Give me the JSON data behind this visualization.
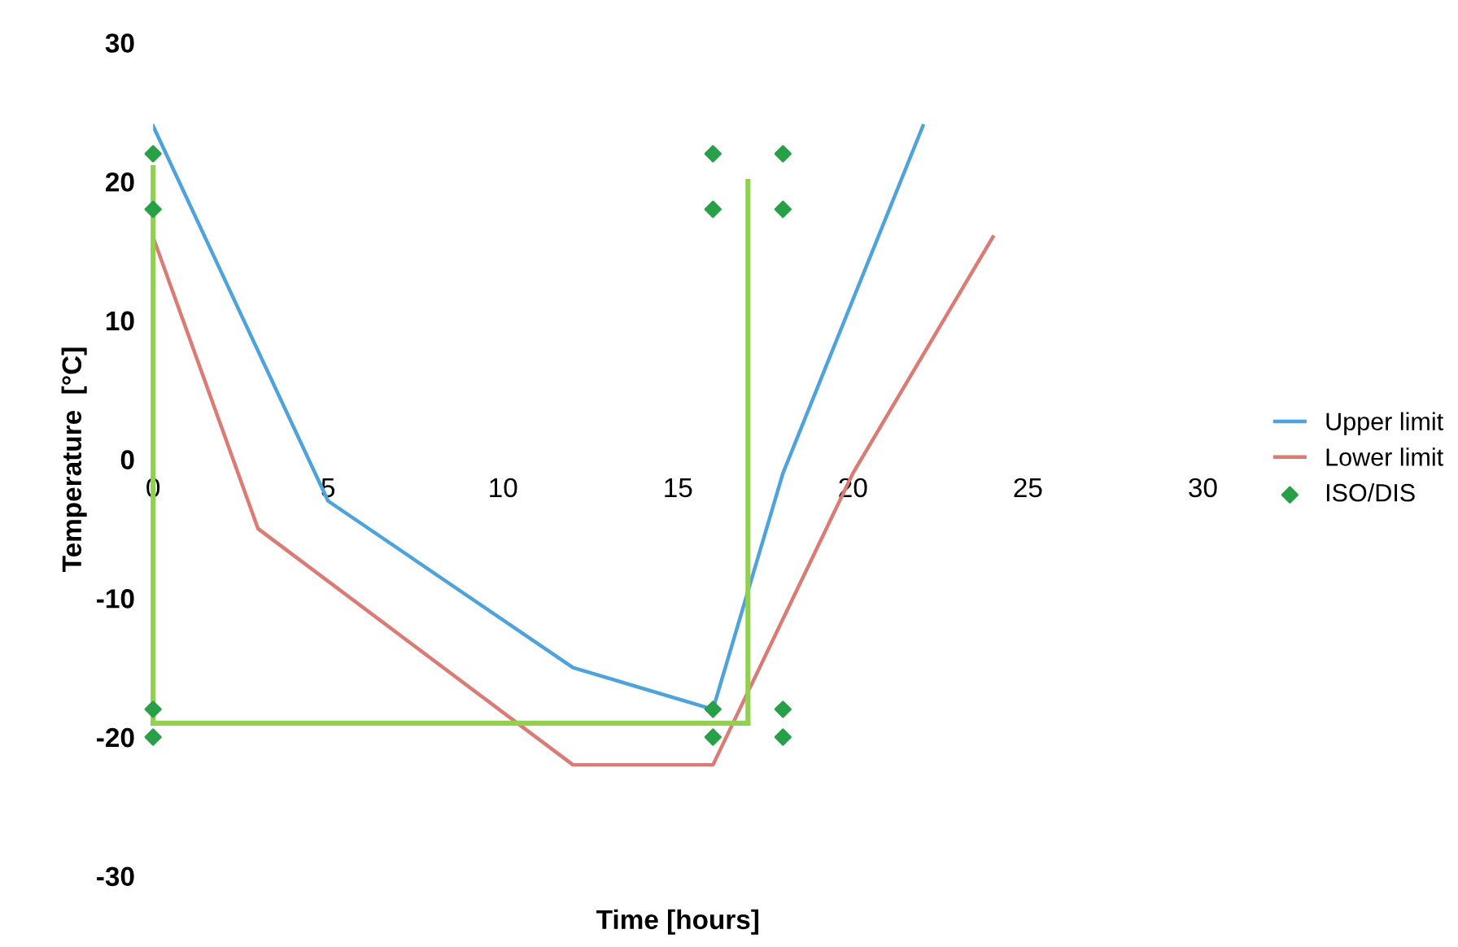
{
  "chart_data": {
    "type": "line",
    "xlabel": "Time [hours]",
    "ylabel": "Temperature  [°C]",
    "xlim": [
      0,
      30
    ],
    "xticks": [
      0,
      5,
      10,
      15,
      20,
      25,
      30
    ],
    "ylim": [
      -30,
      30
    ],
    "yticks": [
      -30,
      -20,
      -10,
      0,
      10,
      20,
      30
    ],
    "grid": false,
    "legend": "right",
    "marker": "none",
    "line_style": "solid",
    "series": [
      {
        "name": "Upper limit",
        "color": "#4ea3dc",
        "x": [
          0,
          5,
          12,
          16,
          18,
          22
        ],
        "values": [
          24,
          -3,
          -15,
          -18,
          -1,
          24
        ]
      },
      {
        "name": "Lower limit",
        "color": "#dc7a74",
        "x": [
          0,
          3,
          12,
          16,
          20,
          24
        ],
        "values": [
          16,
          -5,
          -22,
          -22,
          -1,
          16
        ]
      },
      {
        "name": "ISO/DIS",
        "type": "scatter",
        "marker": "diamond",
        "color": "#27a048",
        "x": [
          0,
          0,
          0,
          0,
          16,
          16,
          16,
          16,
          18,
          18,
          18,
          18
        ],
        "values": [
          22,
          18,
          -18,
          -20,
          22,
          18,
          -18,
          -20,
          22,
          18,
          -18,
          -20
        ]
      },
      {
        "type": "line",
        "color": "#92d050",
        "x": [
          0,
          0
        ],
        "values": [
          21,
          -19
        ]
      },
      {
        "type": "line",
        "color": "#92d050",
        "x": [
          0,
          17
        ],
        "values": [
          -19,
          -19
        ]
      },
      {
        "type": "line",
        "color": "#92d050",
        "x": [
          17,
          17
        ],
        "values": [
          -19,
          20
        ]
      }
    ]
  }
}
